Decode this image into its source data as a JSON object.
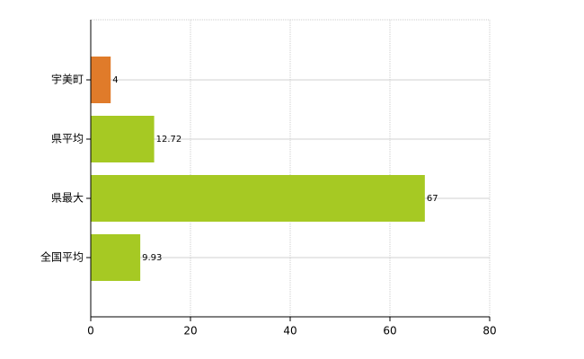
{
  "chart_data": {
    "type": "bar",
    "orientation": "horizontal",
    "categories": [
      "宇美町",
      "県平均",
      "県最大",
      "全国平均"
    ],
    "values": [
      4,
      12.72,
      67,
      9.93
    ],
    "colors": [
      "#e07b2a",
      "#a6c923",
      "#a6c923",
      "#a6c923"
    ],
    "xlim": [
      0,
      80
    ],
    "xticks": [
      0,
      20,
      40,
      60,
      80
    ],
    "grid": true
  }
}
